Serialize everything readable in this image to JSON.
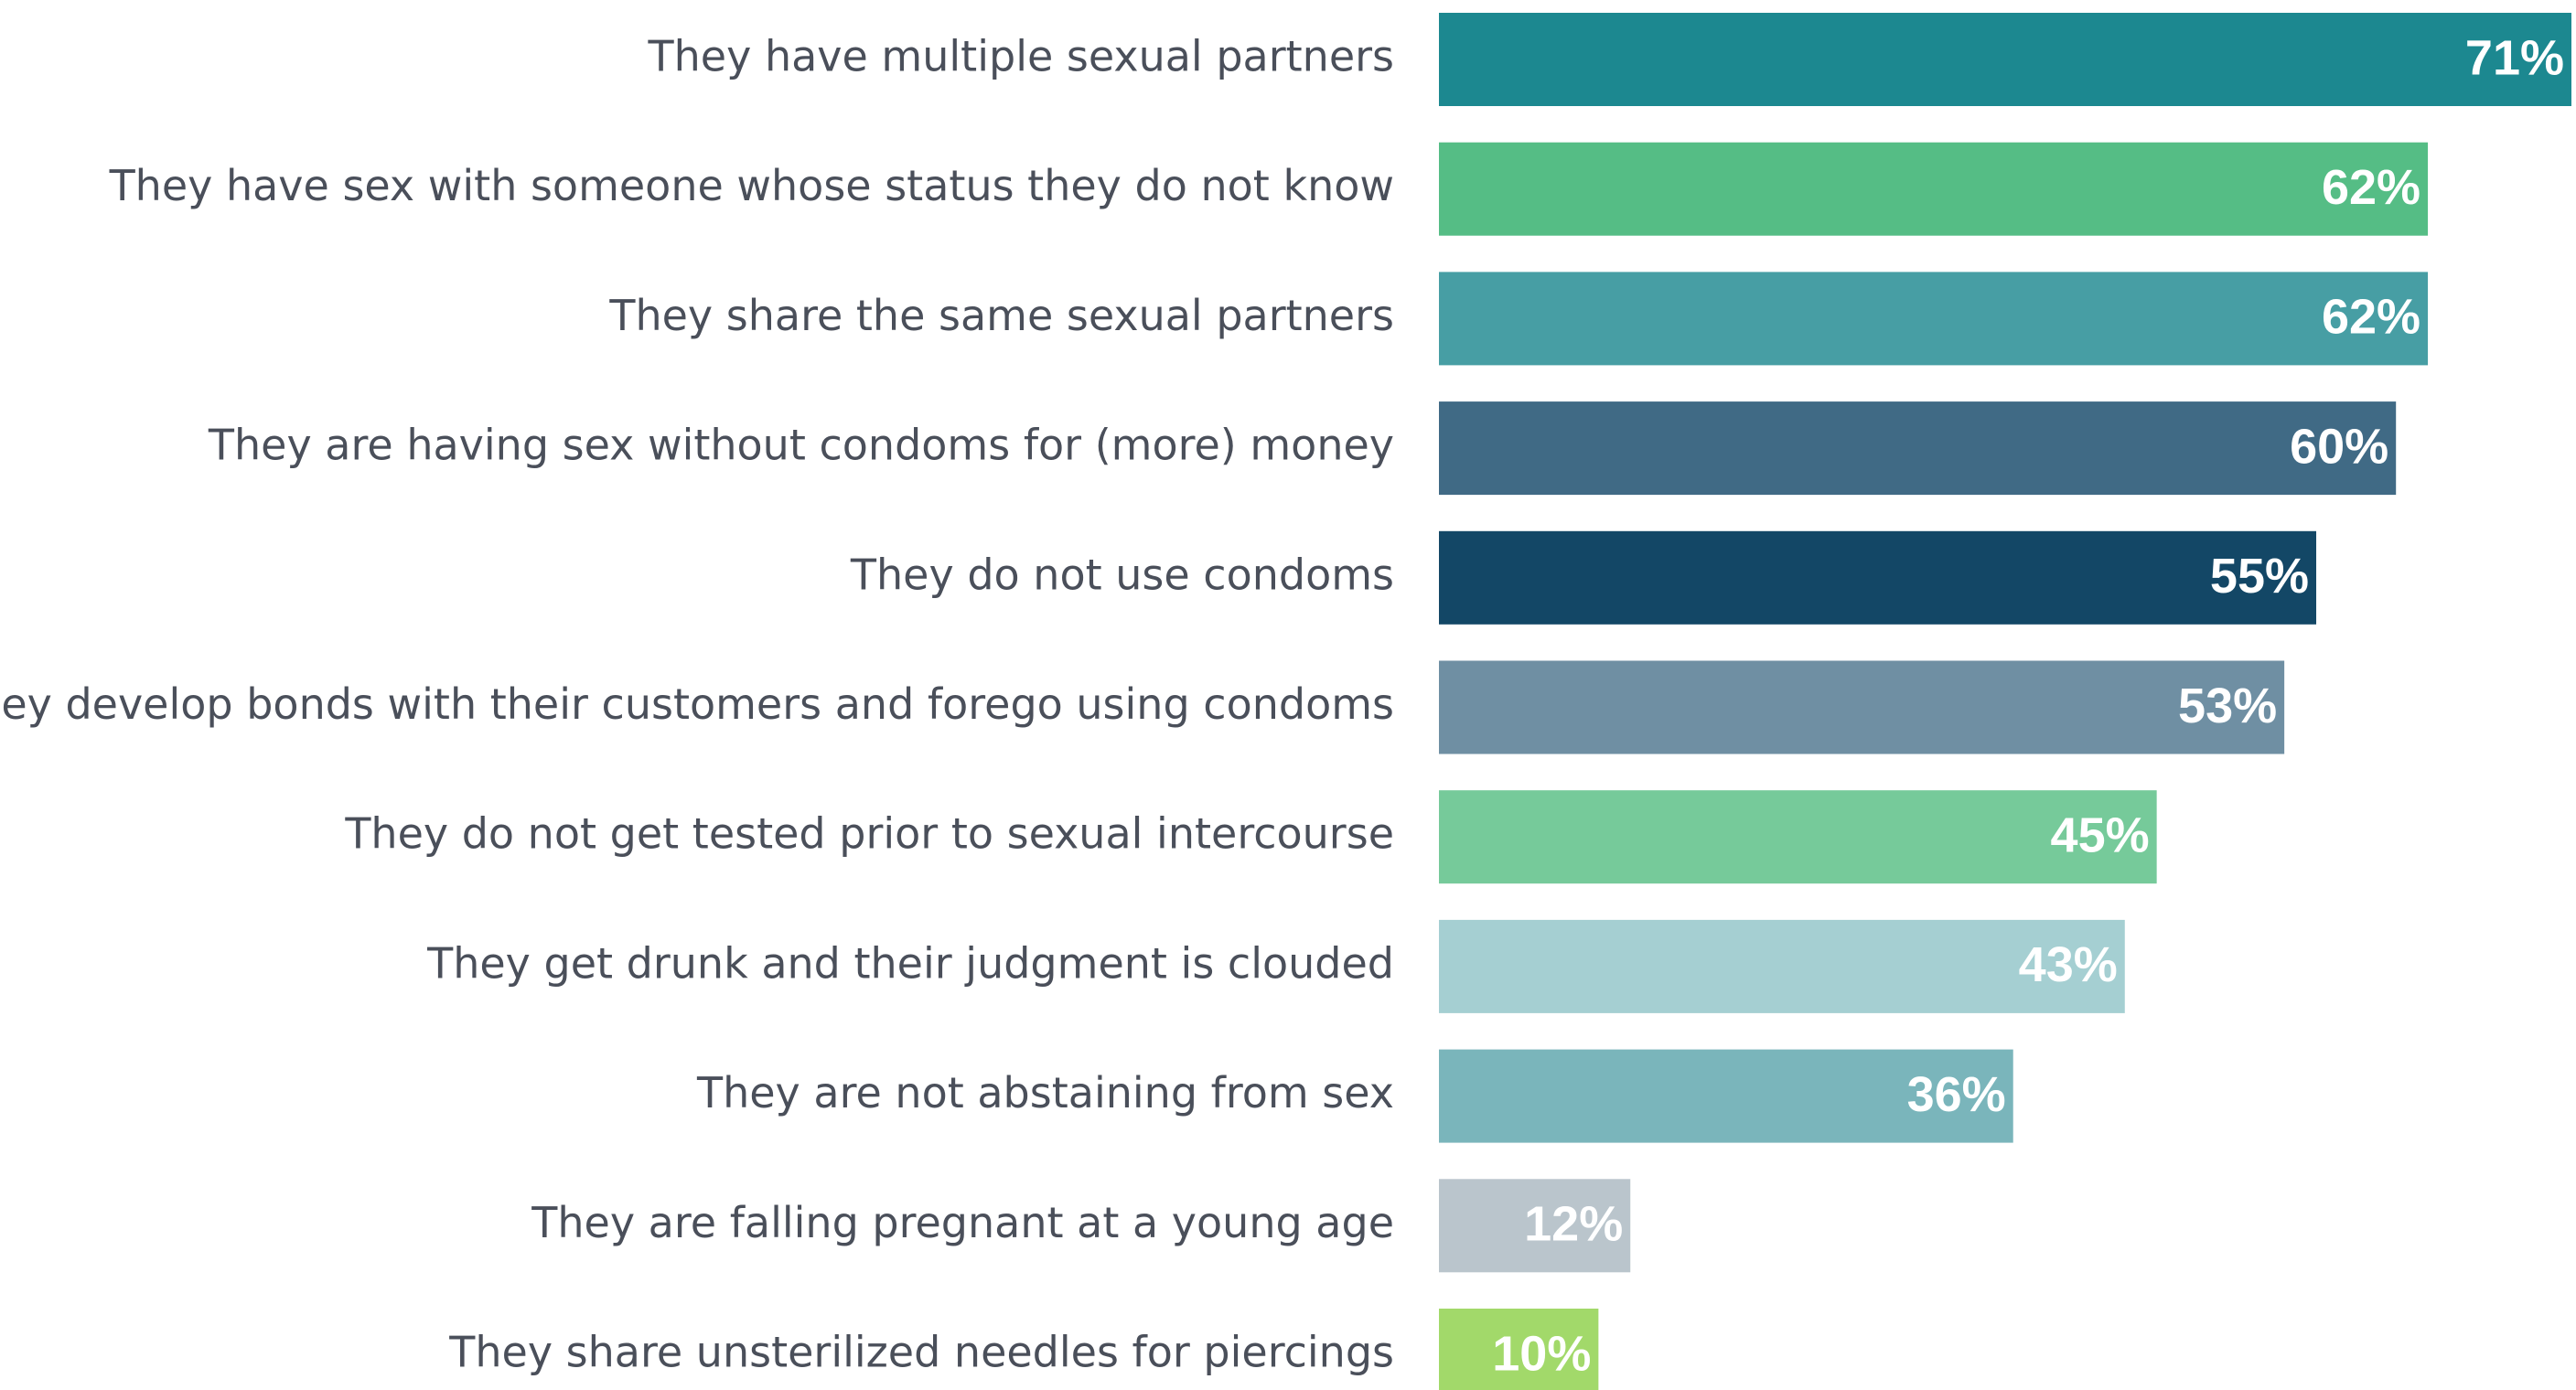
{
  "chart_data": {
    "type": "bar",
    "orientation": "horizontal",
    "categories": [
      "They have multiple sexual partners",
      "They have sex with someone whose status they do not know",
      "They share the same sexual partners",
      "They are having sex without condoms for (more) money",
      "They do not use condoms",
      "They develop bonds with their customers and forego using condoms",
      "They do not get tested prior to sexual intercourse",
      "They get drunk and their judgment is clouded",
      "They are not abstaining from sex",
      "They are falling pregnant at a young age",
      "They share unsterilized needles for piercings"
    ],
    "values": [
      71,
      62,
      62,
      60,
      55,
      53,
      45,
      43,
      36,
      12,
      10
    ],
    "value_labels": [
      "71%",
      "62%",
      "62%",
      "60%",
      "55%",
      "53%",
      "45%",
      "43%",
      "36%",
      "12%",
      "10%"
    ],
    "colors": [
      "#1c8890",
      "#55bd85",
      "#479ea4",
      "#406a85",
      "#134766",
      "#6f8fa3",
      "#76ca9a",
      "#a5cfd2",
      "#7ab5bb",
      "#bac5cc",
      "#a2d96a"
    ]
  }
}
